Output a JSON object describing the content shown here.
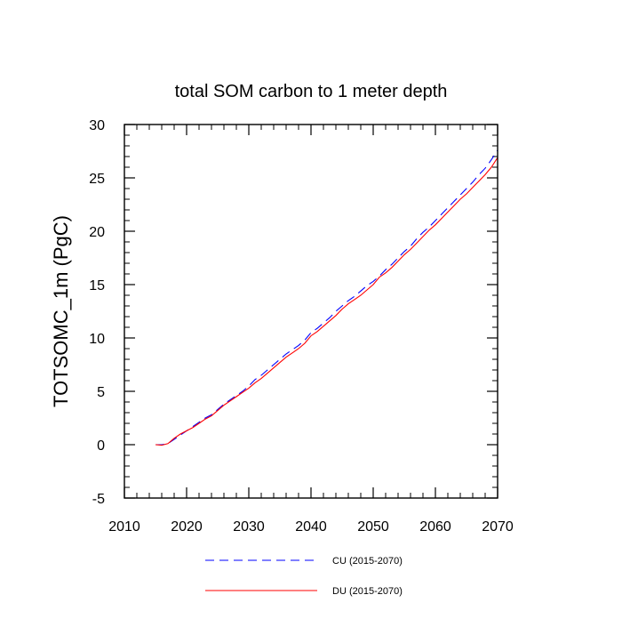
{
  "chart_data": {
    "type": "line",
    "title": "total SOM carbon to 1 meter depth",
    "xlabel": "",
    "ylabel": "TOTSOMC_1m  (PgC)",
    "xlim": [
      2010,
      2070
    ],
    "ylim": [
      -5,
      30
    ],
    "xticks": [
      2010,
      2020,
      2030,
      2040,
      2050,
      2060,
      2070
    ],
    "yticks": [
      -5,
      0,
      5,
      10,
      15,
      20,
      25,
      30
    ],
    "xtick_labels": [
      "2010",
      "2020",
      "2030",
      "2040",
      "2050",
      "2060",
      "2070"
    ],
    "ytick_labels": [
      "-5",
      "0",
      "5",
      "10",
      "15",
      "20",
      "25",
      "30"
    ],
    "grid": false,
    "legend_position": "bottom",
    "x": [
      2015,
      2016,
      2017,
      2018,
      2019,
      2020,
      2021,
      2022,
      2023,
      2024,
      2025,
      2026,
      2027,
      2028,
      2029,
      2030,
      2031,
      2032,
      2033,
      2034,
      2035,
      2036,
      2037,
      2038,
      2039,
      2040,
      2041,
      2042,
      2043,
      2044,
      2045,
      2046,
      2047,
      2048,
      2049,
      2050,
      2051,
      2052,
      2053,
      2054,
      2055,
      2056,
      2057,
      2058,
      2059,
      2060,
      2061,
      2062,
      2063,
      2064,
      2065,
      2066,
      2067,
      2068,
      2069,
      2070
    ],
    "series": [
      {
        "name": "CU (2015-2070)",
        "color": "#0000ff",
        "dash": "dashed",
        "values": [
          0.0,
          0.0,
          0.1,
          0.5,
          0.9,
          1.3,
          1.7,
          2.1,
          2.5,
          2.8,
          3.3,
          3.8,
          4.2,
          4.6,
          5.0,
          5.5,
          6.1,
          6.5,
          7.0,
          7.5,
          8.0,
          8.5,
          8.9,
          9.3,
          9.8,
          10.5,
          10.9,
          11.4,
          11.9,
          12.5,
          13.0,
          13.5,
          13.9,
          14.4,
          14.9,
          15.3,
          15.8,
          16.4,
          16.9,
          17.5,
          18.1,
          18.6,
          19.3,
          19.9,
          20.4,
          21.0,
          21.6,
          22.2,
          22.8,
          23.4,
          24.0,
          24.6,
          25.3,
          25.9,
          26.7,
          27.6
        ]
      },
      {
        "name": "DU (2015-2070)",
        "color": "#ff0000",
        "dash": "solid",
        "values": [
          0.0,
          -0.05,
          0.1,
          0.6,
          1.0,
          1.3,
          1.6,
          2.0,
          2.4,
          2.7,
          3.2,
          3.7,
          4.1,
          4.5,
          4.9,
          5.3,
          5.8,
          6.2,
          6.7,
          7.2,
          7.7,
          8.2,
          8.6,
          9.0,
          9.5,
          10.2,
          10.6,
          11.1,
          11.6,
          12.1,
          12.7,
          13.2,
          13.6,
          14.0,
          14.5,
          15.0,
          15.7,
          16.1,
          16.6,
          17.2,
          17.8,
          18.3,
          18.9,
          19.5,
          20.1,
          20.6,
          21.2,
          21.8,
          22.4,
          23.0,
          23.5,
          24.1,
          24.7,
          25.3,
          26.0,
          26.9
        ]
      }
    ]
  }
}
